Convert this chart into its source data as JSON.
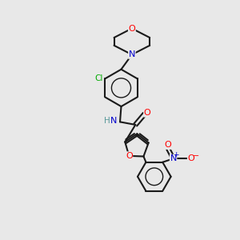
{
  "background_color": "#e8e8e8",
  "bond_color": "#1a1a1a",
  "atom_colors": {
    "O": "#ff0000",
    "N": "#0000cc",
    "Cl": "#00aa00",
    "H": "#5a9a9a",
    "C": "#1a1a1a"
  },
  "figsize": [
    3.0,
    3.0
  ],
  "dpi": 100
}
